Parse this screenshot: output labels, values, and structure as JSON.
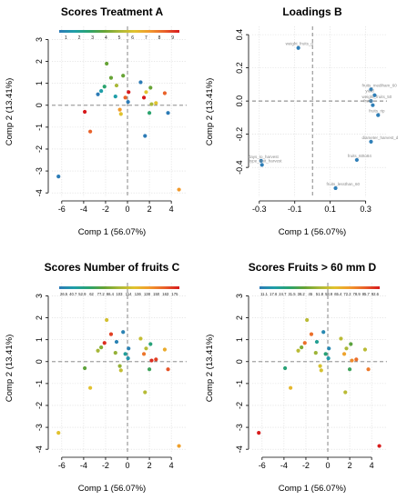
{
  "colors": {
    "point_default": "#2f7fb8",
    "refline": "#7a7a7a",
    "grid": "#d8d8d8",
    "loading_label": "#8a8a8a"
  },
  "palette": [
    "#2c7bb6",
    "#1f9ea8",
    "#2aa36e",
    "#66a335",
    "#a9b838",
    "#e0c32e",
    "#f29a2c",
    "#e9622a",
    "#d7191c"
  ],
  "common": {
    "xlabel": "Comp 1 (56.07%)",
    "ylabel": "Comp 2 (13.41%)"
  },
  "chart_data": [
    {
      "type": "scatter",
      "title": "Scores Treatment A",
      "xlabel": "Comp 1 (56.07%)",
      "ylabel": "Comp 2 (13.41%)",
      "xlim": [
        -6.9,
        5.4
      ],
      "ylim": [
        -4.2,
        3.6
      ],
      "xticks": [
        -6,
        -4,
        -2,
        0,
        2,
        4
      ],
      "yticks": [
        -4,
        -3,
        -2,
        -1,
        0,
        1,
        2,
        3
      ],
      "grid": true,
      "colorbar": {
        "labels": [
          "1",
          "2",
          "3",
          "4",
          "5",
          "6",
          "7",
          "8",
          "9"
        ],
        "min": 1,
        "max": 9
      },
      "points": [
        {
          "x": -6.3,
          "y": -3.25,
          "c": 1
        },
        {
          "x": -3.9,
          "y": -0.3,
          "c": 9
        },
        {
          "x": -3.4,
          "y": -1.2,
          "c": 8
        },
        {
          "x": -2.7,
          "y": 0.5,
          "c": 1
        },
        {
          "x": -2.4,
          "y": 0.65,
          "c": 2
        },
        {
          "x": -2.1,
          "y": 0.85,
          "c": 3
        },
        {
          "x": -1.9,
          "y": 1.9,
          "c": 4
        },
        {
          "x": -1.5,
          "y": 1.25,
          "c": 4
        },
        {
          "x": -1.0,
          "y": 0.9,
          "c": 5
        },
        {
          "x": -1.1,
          "y": 0.4,
          "c": 2
        },
        {
          "x": -0.7,
          "y": -0.2,
          "c": 7
        },
        {
          "x": -0.6,
          "y": -0.4,
          "c": 6
        },
        {
          "x": -0.4,
          "y": 1.35,
          "c": 4
        },
        {
          "x": -0.2,
          "y": 0.35,
          "c": 8
        },
        {
          "x": 0.1,
          "y": 0.6,
          "c": 9
        },
        {
          "x": 0.05,
          "y": 0.15,
          "c": 1
        },
        {
          "x": 1.2,
          "y": 1.05,
          "c": 1
        },
        {
          "x": 1.5,
          "y": 0.35,
          "c": 9
        },
        {
          "x": 1.7,
          "y": 0.6,
          "c": 6
        },
        {
          "x": 2.1,
          "y": 0.8,
          "c": 4
        },
        {
          "x": 2.2,
          "y": 0.05,
          "c": 5
        },
        {
          "x": 2.0,
          "y": -0.35,
          "c": 3
        },
        {
          "x": 2.6,
          "y": 0.1,
          "c": 6
        },
        {
          "x": 1.6,
          "y": -1.4,
          "c": 1
        },
        {
          "x": 3.4,
          "y": 0.55,
          "c": 8
        },
        {
          "x": 3.7,
          "y": -0.35,
          "c": 1
        },
        {
          "x": 4.7,
          "y": -3.85,
          "c": 7
        }
      ]
    },
    {
      "type": "scatter",
      "title": "Loadings B",
      "xlabel": "Comp 1 (56.07%)",
      "ylabel": "Comp 2 (13.41%)",
      "xlim": [
        -0.34,
        0.42
      ],
      "ylim": [
        -0.58,
        0.45
      ],
      "xticks": [
        -0.3,
        -0.1,
        0.1,
        0.3
      ],
      "yticks": [
        -0.4,
        -0.2,
        0.0,
        0.2,
        0.4
      ],
      "xticklabels": [
        "-0.3",
        "-0.1",
        "0.1",
        "0.3"
      ],
      "yticklabels": [
        "-0.4",
        "-0.2",
        "0.0",
        "0.2",
        "0.4"
      ],
      "grid": true,
      "points": [
        {
          "x": -0.08,
          "y": 0.32,
          "label": "weight_fruits_g"
        },
        {
          "x": 0.33,
          "y": 0.07,
          "label": "fruits_mediham_60"
        },
        {
          "x": 0.35,
          "y": 0.035,
          "label": "yield"
        },
        {
          "x": 0.33,
          "y": 0.0,
          "label": "weight_fruits_50"
        },
        {
          "x": 0.34,
          "y": -0.025,
          "label": "fruits"
        },
        {
          "x": 0.37,
          "y": -0.085,
          "label": "fruits_rip"
        },
        {
          "x": 0.33,
          "y": -0.245,
          "label": "diameter_harvest_d"
        },
        {
          "x": 0.25,
          "y": -0.355,
          "label": "fruits_60to84"
        },
        {
          "x": 0.13,
          "y": -0.525,
          "label": "fruits_lessthan_60"
        },
        {
          "x": -0.29,
          "y": -0.36,
          "label": "days_to_harvest"
        },
        {
          "x": -0.285,
          "y": -0.385,
          "label": "type_fruit_harvest"
        }
      ]
    },
    {
      "type": "scatter",
      "title": "Scores Number of fruits C",
      "xlabel": "Comp 1 (56.07%)",
      "ylabel": "Comp 2 (13.41%)",
      "xlim": [
        -6.9,
        5.4
      ],
      "ylim": [
        -4.2,
        3.6
      ],
      "xticks": [
        -6,
        -4,
        -2,
        0,
        2,
        4
      ],
      "yticks": [
        -4,
        -3,
        -2,
        -1,
        0,
        1,
        2,
        3
      ],
      "grid": true,
      "colorbar": {
        "labels": [
          "26.5",
          "40.7",
          "52.9",
          "62",
          "77.2",
          "86.4",
          "103",
          "114",
          "136",
          "138",
          "150",
          "163",
          "175"
        ],
        "min": 26.5,
        "max": 175
      },
      "points": [
        {
          "x": -6.3,
          "y": -3.25,
          "c": 120
        },
        {
          "x": -3.9,
          "y": -0.3,
          "c": 80
        },
        {
          "x": -3.4,
          "y": -1.2,
          "c": 120
        },
        {
          "x": -2.7,
          "y": 0.5,
          "c": 100
        },
        {
          "x": -2.4,
          "y": 0.65,
          "c": 90
        },
        {
          "x": -2.1,
          "y": 0.85,
          "c": 170
        },
        {
          "x": -1.9,
          "y": 1.9,
          "c": 115
        },
        {
          "x": -1.5,
          "y": 1.25,
          "c": 165
        },
        {
          "x": -1.0,
          "y": 0.9,
          "c": 30
        },
        {
          "x": -1.1,
          "y": 0.4,
          "c": 95
        },
        {
          "x": -0.7,
          "y": -0.2,
          "c": 95
        },
        {
          "x": -0.6,
          "y": -0.4,
          "c": 110
        },
        {
          "x": -0.4,
          "y": 1.35,
          "c": 30
        },
        {
          "x": -0.2,
          "y": 0.35,
          "c": 50
        },
        {
          "x": 0.1,
          "y": 0.6,
          "c": 30
        },
        {
          "x": 0.05,
          "y": 0.15,
          "c": 40
        },
        {
          "x": 1.2,
          "y": 1.05,
          "c": 110
        },
        {
          "x": 1.5,
          "y": 0.35,
          "c": 150
        },
        {
          "x": 1.7,
          "y": 0.6,
          "c": 105
        },
        {
          "x": 2.1,
          "y": 0.8,
          "c": 60
        },
        {
          "x": 2.2,
          "y": 0.05,
          "c": 170
        },
        {
          "x": 2.0,
          "y": -0.35,
          "c": 70
        },
        {
          "x": 2.6,
          "y": 0.1,
          "c": 165
        },
        {
          "x": 1.6,
          "y": -1.4,
          "c": 105
        },
        {
          "x": 3.4,
          "y": 0.55,
          "c": 130
        },
        {
          "x": 3.7,
          "y": -0.35,
          "c": 160
        },
        {
          "x": 4.7,
          "y": -3.85,
          "c": 135
        }
      ]
    },
    {
      "type": "scatter",
      "title": "Scores Fruits > 60 mm D",
      "xlabel": "Comp 1 (56.07%)",
      "ylabel": "Comp 2 (13.41%)",
      "xlim": [
        -6.9,
        5.4
      ],
      "ylim": [
        -4.2,
        3.6
      ],
      "xticks": [
        -6,
        -4,
        -2,
        0,
        2,
        4
      ],
      "yticks": [
        -4,
        -3,
        -2,
        -1,
        0,
        1,
        2,
        3
      ],
      "grid": true,
      "colorbar": {
        "labels": [
          "11.1",
          "17.6",
          "24.7",
          "31.5",
          "38.2",
          "45",
          "51.8",
          "58.9",
          "65.4",
          "72.2",
          "78.9",
          "85.7",
          "92.6"
        ],
        "min": 11.1,
        "max": 92.6
      },
      "points": [
        {
          "x": -6.3,
          "y": -3.25,
          "c": 92
        },
        {
          "x": -3.9,
          "y": -0.3,
          "c": 30
        },
        {
          "x": -3.4,
          "y": -1.2,
          "c": 65
        },
        {
          "x": -2.7,
          "y": 0.5,
          "c": 55
        },
        {
          "x": -2.4,
          "y": 0.65,
          "c": 45
        },
        {
          "x": -2.1,
          "y": 0.85,
          "c": 80
        },
        {
          "x": -1.9,
          "y": 1.9,
          "c": 55
        },
        {
          "x": -1.5,
          "y": 1.25,
          "c": 80
        },
        {
          "x": -1.0,
          "y": 0.9,
          "c": 25
        },
        {
          "x": -1.1,
          "y": 0.4,
          "c": 50
        },
        {
          "x": -0.7,
          "y": -0.2,
          "c": 60
        },
        {
          "x": -0.6,
          "y": -0.4,
          "c": 60
        },
        {
          "x": -0.4,
          "y": 1.35,
          "c": 15
        },
        {
          "x": -0.2,
          "y": 0.35,
          "c": 30
        },
        {
          "x": 0.1,
          "y": 0.6,
          "c": 15
        },
        {
          "x": 0.05,
          "y": 0.15,
          "c": 20
        },
        {
          "x": 1.2,
          "y": 1.05,
          "c": 55
        },
        {
          "x": 1.5,
          "y": 0.35,
          "c": 70
        },
        {
          "x": 1.7,
          "y": 0.6,
          "c": 52
        },
        {
          "x": 2.1,
          "y": 0.8,
          "c": 40
        },
        {
          "x": 2.2,
          "y": 0.05,
          "c": 75
        },
        {
          "x": 2.0,
          "y": -0.35,
          "c": 35
        },
        {
          "x": 2.6,
          "y": 0.1,
          "c": 80
        },
        {
          "x": 1.6,
          "y": -1.4,
          "c": 55
        },
        {
          "x": 3.4,
          "y": 0.55,
          "c": 55
        },
        {
          "x": 3.7,
          "y": -0.35,
          "c": 78
        },
        {
          "x": 4.7,
          "y": -3.85,
          "c": 92
        }
      ]
    }
  ]
}
